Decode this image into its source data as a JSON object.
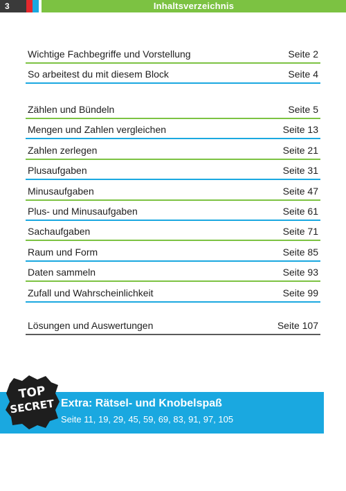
{
  "header": {
    "page_number": "3",
    "title": "Inhaltsverzeichnis"
  },
  "toc_groups": [
    [
      {
        "label": "Wichtige Fachbegriffe und Vorstellung",
        "page": "Seite 2"
      },
      {
        "label": "So arbeitest du mit diesem Block",
        "page": "Seite 4"
      }
    ],
    [
      {
        "label": "Zählen und Bündeln",
        "page": "Seite 5"
      },
      {
        "label": "Mengen und Zahlen vergleichen",
        "page": "Seite 13"
      },
      {
        "label": "Zahlen zerlegen",
        "page": "Seite 21"
      },
      {
        "label": "Plusaufgaben",
        "page": "Seite 31"
      },
      {
        "label": "Minusaufgaben",
        "page": "Seite 47"
      },
      {
        "label": "Plus- und Minusaufgaben",
        "page": "Seite 61"
      },
      {
        "label": "Sachaufgaben",
        "page": "Seite 71"
      },
      {
        "label": "Raum und Form",
        "page": "Seite 85"
      },
      {
        "label": "Daten sammeln",
        "page": "Seite 93"
      },
      {
        "label": "Zufall und Wahrscheinlichkeit",
        "page": "Seite 99"
      }
    ],
    [
      {
        "label": "Lösungen und Auswertungen",
        "page": "Seite 107"
      }
    ]
  ],
  "extra": {
    "badge_line1": "TOP",
    "badge_line2": "SECRET",
    "title": "Extra: Rätsel- und Knobelspaß",
    "pages": "Seite 11, 19, 29, 45, 59, 69, 83, 91, 97, 105"
  },
  "colors": {
    "green": "#7cc242",
    "blue": "#1aa8e0",
    "red": "#e4282d",
    "dark": "#3a3a3a"
  }
}
